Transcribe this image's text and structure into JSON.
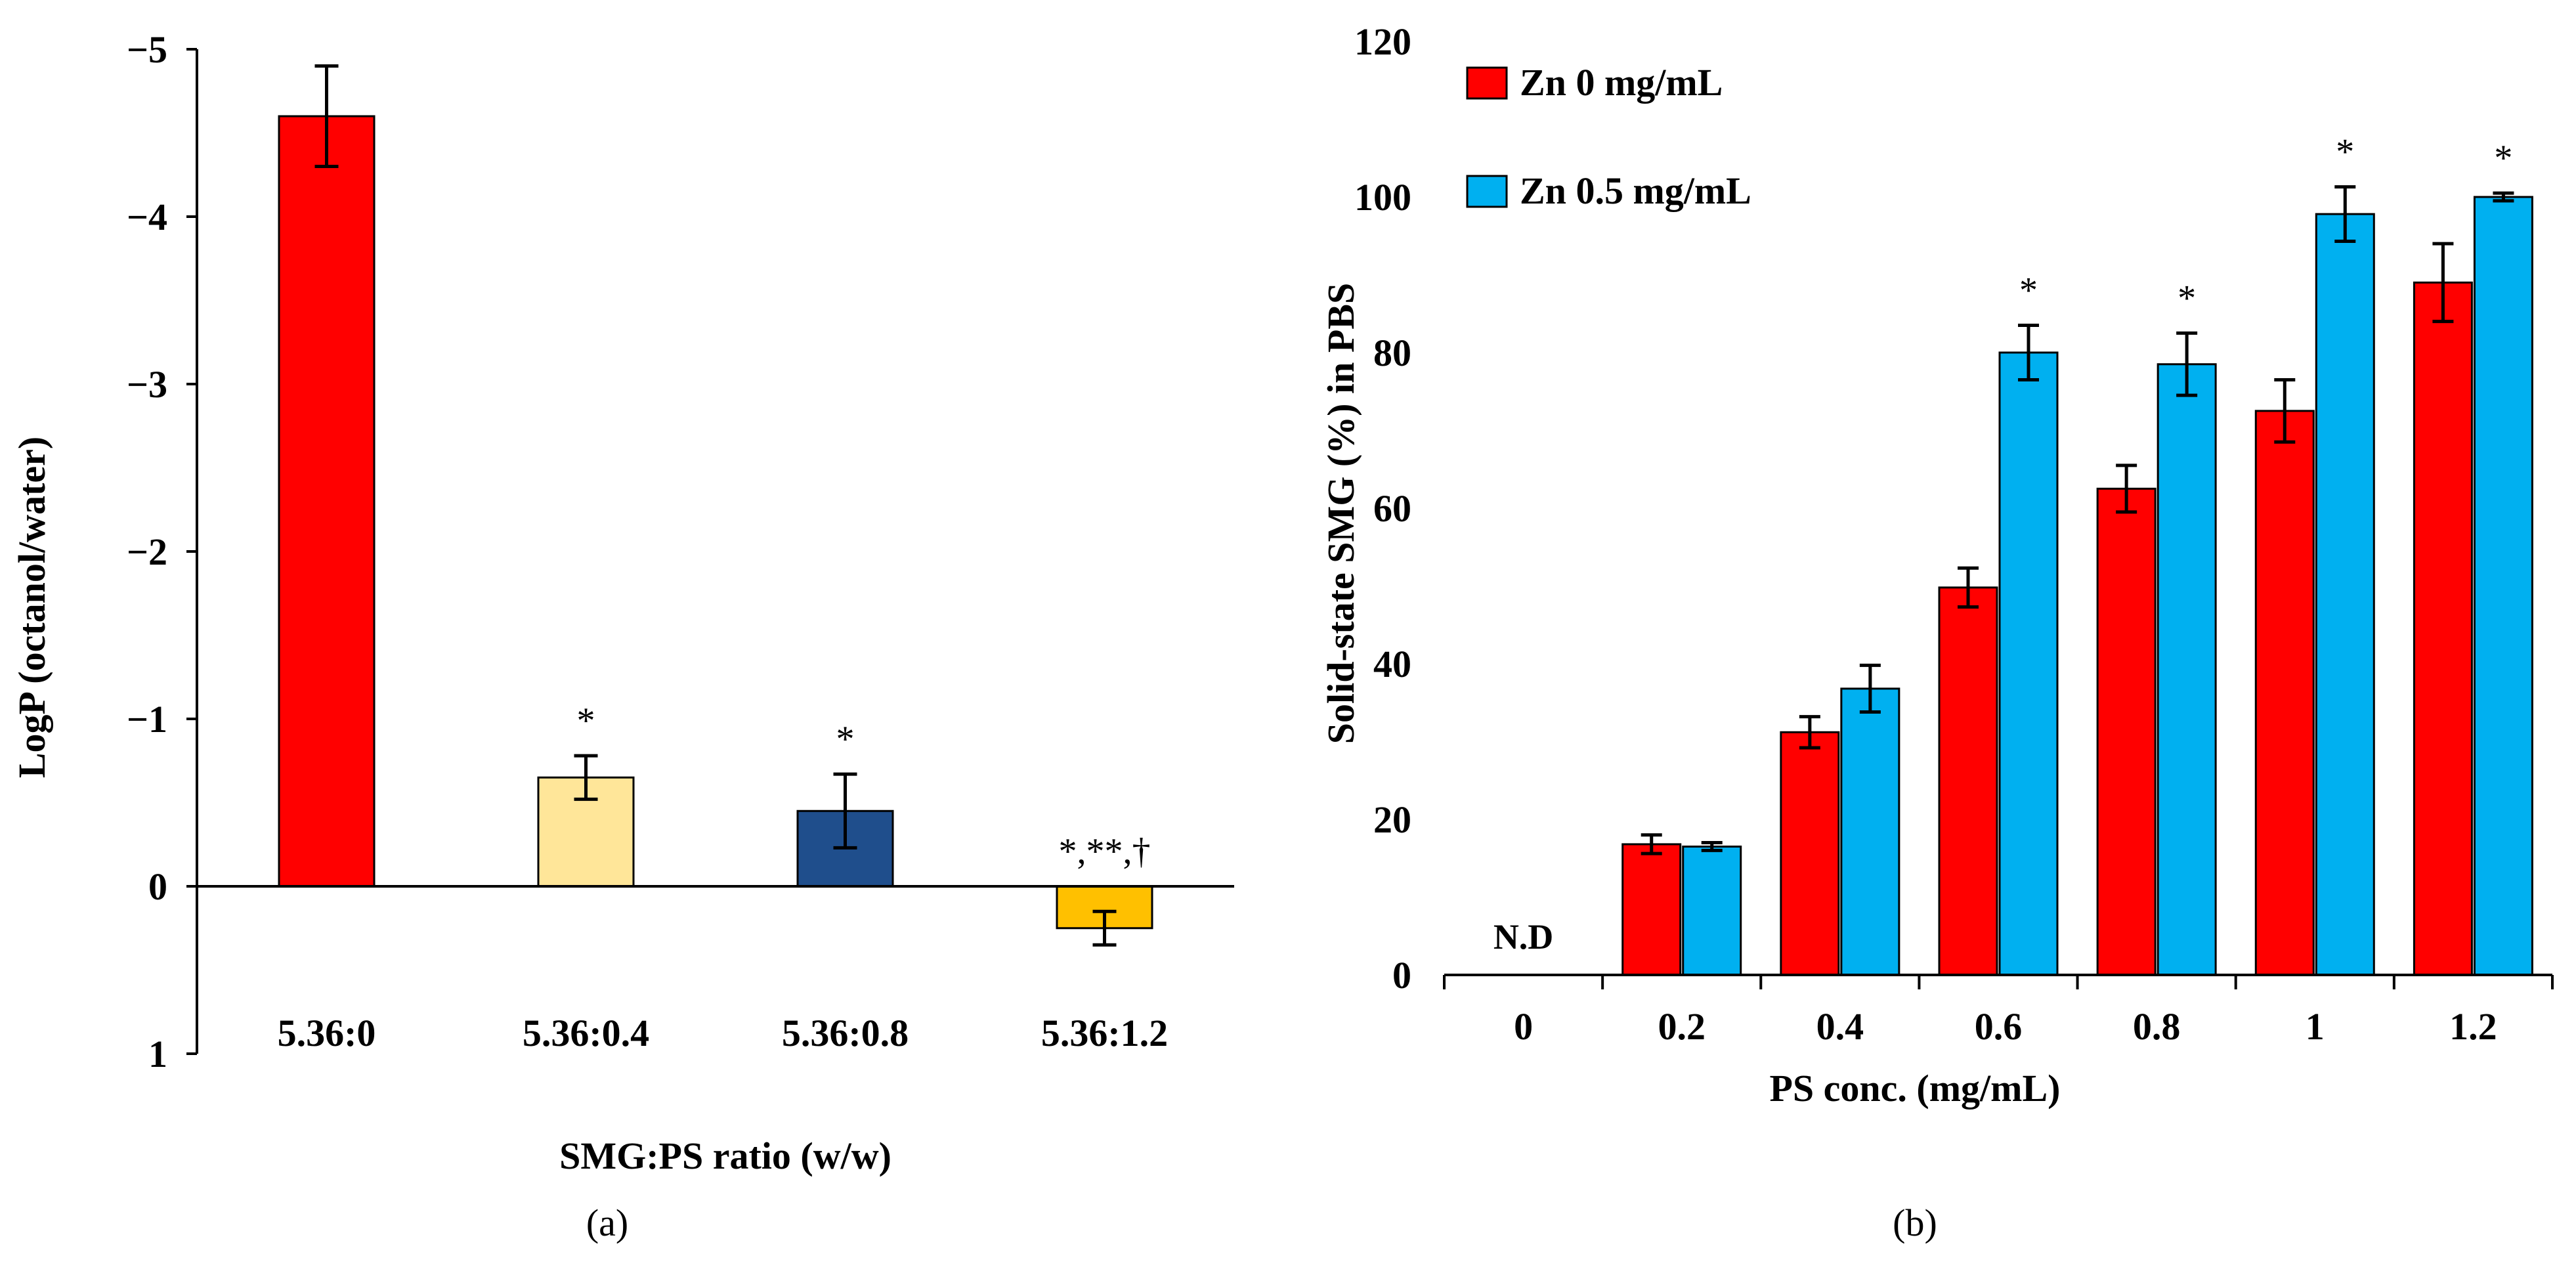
{
  "chart_data": [
    {
      "panel_label": "(a)",
      "type": "bar",
      "title": "",
      "xlabel": "SMG:PS ratio (w/w)",
      "ylabel": "LogP (octanol/water)",
      "y_inverted": true,
      "ylim": [
        1,
        -5
      ],
      "yticks": [
        1,
        0,
        -1,
        -2,
        -3,
        -4,
        -5
      ],
      "ytick_labels": [
        "1",
        "0",
        "−1",
        "−2",
        "−3",
        "−4",
        "−5"
      ],
      "categories": [
        "5.36:0",
        "5.36:0.4",
        "5.36:0.8",
        "5.36:1.2"
      ],
      "values": [
        -4.6,
        -0.65,
        -0.45,
        0.25
      ],
      "errors": [
        0.3,
        0.13,
        0.22,
        0.1
      ],
      "bar_colors": [
        "#ff0000",
        "#ffe699",
        "#1f4e8c",
        "#ffc000"
      ],
      "annotations": [
        "",
        "*",
        "*",
        "*,**,†"
      ]
    },
    {
      "panel_label": "(b)",
      "type": "bar",
      "title": "",
      "xlabel": "PS conc. (mg/mL)",
      "ylabel": "Solid-state SMG (%) in PBS",
      "ylim": [
        0,
        120
      ],
      "yticks": [
        0,
        20,
        40,
        60,
        80,
        100,
        120
      ],
      "categories": [
        "0",
        "0.2",
        "0.4",
        "0.6",
        "0.8",
        "1",
        "1.2"
      ],
      "legend_position": "top-left",
      "series": [
        {
          "name": "Zn 0 mg/mL",
          "color": "#ff0000",
          "values": [
            0,
            16.8,
            31.2,
            49.8,
            62.5,
            72.5,
            89
          ],
          "errors": [
            0,
            1.2,
            2,
            2.5,
            3,
            4,
            5
          ]
        },
        {
          "name": "Zn 0.5 mg/mL",
          "color": "#00b0f0",
          "values": [
            0,
            16.5,
            36.8,
            80,
            78.5,
            97.8,
            100
          ],
          "errors": [
            0,
            0.5,
            3,
            3.5,
            4,
            3.5,
            0.5
          ]
        }
      ],
      "annotations": [
        "N.D",
        "",
        "",
        "*",
        "*",
        "*",
        "*"
      ]
    }
  ]
}
